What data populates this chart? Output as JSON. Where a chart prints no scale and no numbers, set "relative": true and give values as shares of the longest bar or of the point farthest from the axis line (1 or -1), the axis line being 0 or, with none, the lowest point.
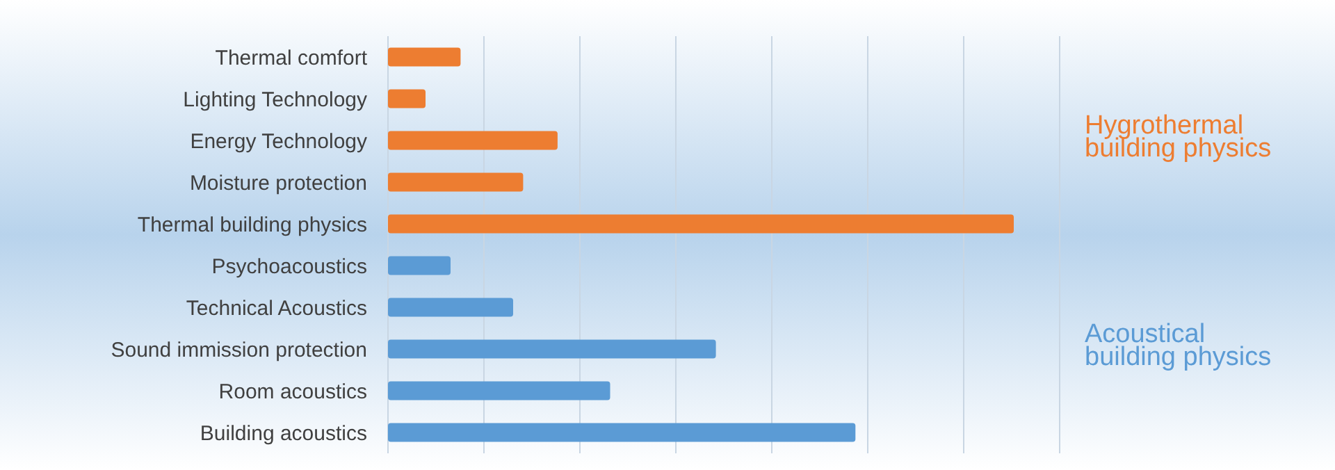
{
  "chart_data": {
    "type": "bar",
    "orientation": "horizontal",
    "relative": true,
    "grid": "x",
    "legend": "right",
    "categories": [
      "Thermal comfort",
      "Lighting Technology",
      "Energy Technology",
      "Moisture protection",
      "Thermal building physics",
      "Psychoacoustics",
      "Technical Acoustics",
      "Sound immission protection",
      "Room acoustics",
      "Building acoustics"
    ],
    "series": [
      {
        "name": "Hygrothermal building physics",
        "color": "#ed7d31",
        "values": [
          0.116,
          0.06,
          0.271,
          0.216,
          1,
          null,
          null,
          null,
          null,
          null
        ]
      },
      {
        "name": "Acoustical building physics",
        "color": "#5b9bd5",
        "values": [
          null,
          null,
          null,
          null,
          null,
          0.1,
          0.2,
          0.524,
          0.355,
          0.747
        ]
      }
    ]
  }
}
